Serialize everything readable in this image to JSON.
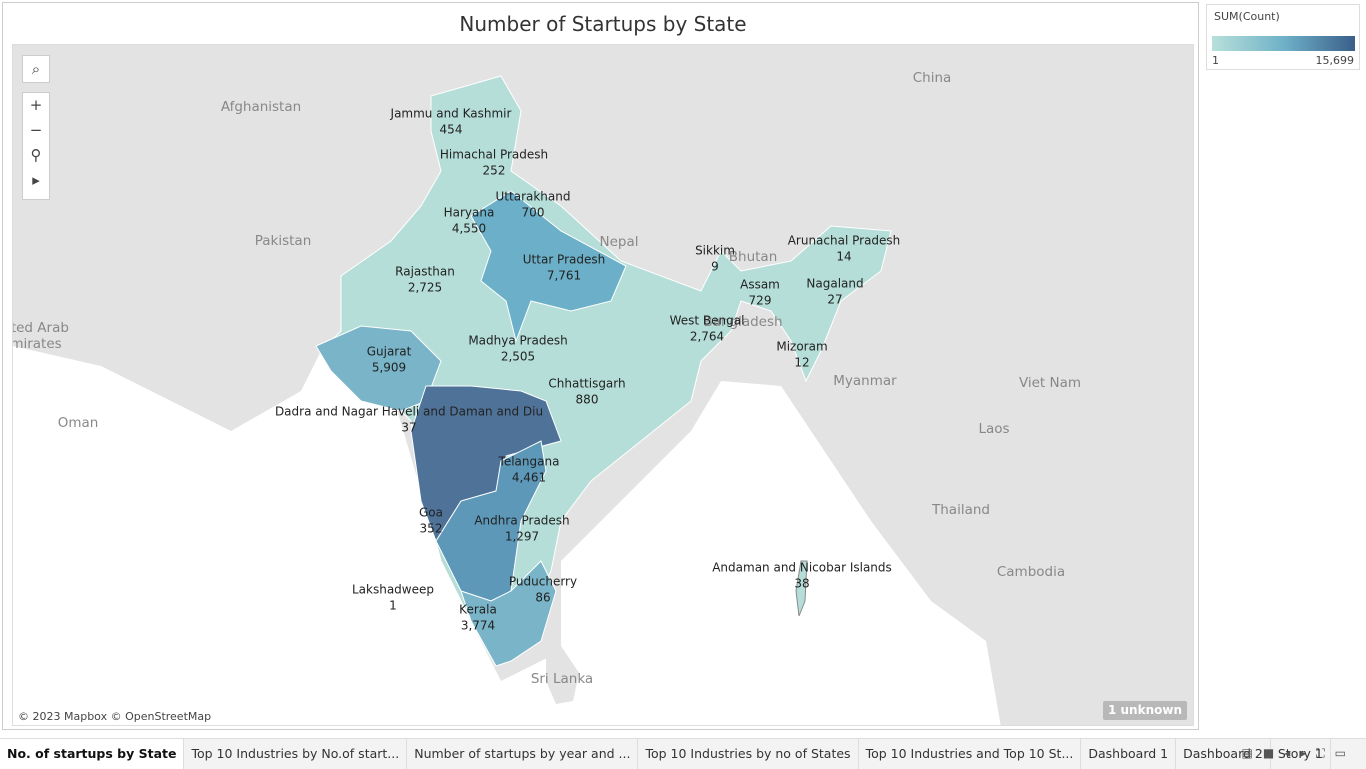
{
  "title": "Number of Startups by State",
  "legend": {
    "title": "SUM(Count)",
    "min": "1",
    "max": "15,699"
  },
  "states": [
    {
      "name": "Jammu and Kashmir",
      "count": "454"
    },
    {
      "name": "Himachal Pradesh",
      "count": "252"
    },
    {
      "name": "Uttarakhand",
      "count": "700"
    },
    {
      "name": "Haryana",
      "count": "4,550"
    },
    {
      "name": "Uttar Pradesh",
      "count": "7,761"
    },
    {
      "name": "Rajasthan",
      "count": "2,725"
    },
    {
      "name": "Madhya Pradesh",
      "count": "2,505"
    },
    {
      "name": "Gujarat",
      "count": "5,909"
    },
    {
      "name": "Chhattisgarh",
      "count": "880"
    },
    {
      "name": "Dadra and Nagar Haveli and Daman and Diu",
      "count": "37"
    },
    {
      "name": "Telangana",
      "count": "4,461"
    },
    {
      "name": "Goa",
      "count": "352"
    },
    {
      "name": "Andhra Pradesh",
      "count": "1,297"
    },
    {
      "name": "Puducherry",
      "count": "86"
    },
    {
      "name": "Kerala",
      "count": "3,774"
    },
    {
      "name": "Lakshadweep",
      "count": "1"
    },
    {
      "name": "Andaman and Nicobar Islands",
      "count": "38"
    },
    {
      "name": "West Bengal",
      "count": "2,764"
    },
    {
      "name": "Sikkim",
      "count": "9"
    },
    {
      "name": "Assam",
      "count": "729"
    },
    {
      "name": "Arunachal Pradesh",
      "count": "14"
    },
    {
      "name": "Nagaland",
      "count": "27"
    },
    {
      "name": "Mizoram",
      "count": "12"
    }
  ],
  "countries": [
    "China",
    "Afghanistan",
    "Pakistan",
    "Nepal",
    "Bhutan",
    "Bangladesh",
    "Myanmar",
    "Viet Nam",
    "Laos",
    "Thailand",
    "Cambodia",
    "Oman",
    "Sri Lanka",
    "ited Arab",
    "mirates"
  ],
  "attribution": "© 2023 Mapbox © OpenStreetMap",
  "unknown_badge": "1 unknown",
  "tabs": [
    "No. of startups by State",
    "Top 10 Industries by No.of start...",
    "Number of startups by year and ...",
    "Top 10 Industries by no of States",
    "Top 10 Industries and Top 10 St...",
    "Dashboard 1",
    "Dashboard 2",
    "Story 1"
  ]
}
